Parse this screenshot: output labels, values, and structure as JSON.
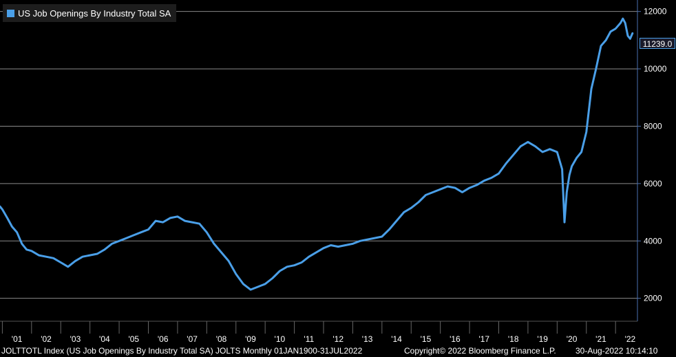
{
  "legend": {
    "label": "US Job Openings By Industry Total SA",
    "color": "#4a9fe8"
  },
  "last_value_label": "11239.0",
  "footer": {
    "left": "JOLTTOTL Index (US Job Openings By Industry Total SA) JOLTS  Monthly 01JAN1900-31JUL2022",
    "middle": "Copyright© 2022 Bloomberg Finance L.P.",
    "right": "30-Aug-2022 10:14:10"
  },
  "chart_data": {
    "type": "line",
    "title": "",
    "xlabel": "",
    "ylabel": "",
    "ylim": [
      1200,
      12400
    ],
    "yticks": [
      2000,
      4000,
      6000,
      8000,
      10000,
      12000
    ],
    "ytick_labels": [
      "2000",
      "4000",
      "6000",
      "8000",
      "10000",
      "12000"
    ],
    "xlim": [
      2000.92,
      2022.75
    ],
    "xticks": [
      2001.5,
      2002.5,
      2003.5,
      2004.5,
      2005.5,
      2006.5,
      2007.5,
      2008.5,
      2009.5,
      2010.5,
      2011.5,
      2012.5,
      2013.5,
      2014.5,
      2015.5,
      2016.5,
      2017.5,
      2018.5,
      2019.5,
      2020.5,
      2021.5,
      2022.5
    ],
    "xtick_labels": [
      "'01",
      "'02",
      "'03",
      "'04",
      "'05",
      "'06",
      "'07",
      "'08",
      "'09",
      "'10",
      "'11",
      "'12",
      "'13",
      "'14",
      "'15",
      "'16",
      "'17",
      "'18",
      "'19",
      "'20",
      "'21",
      "'22"
    ],
    "grid": true,
    "legend_position": "top-left",
    "series": [
      {
        "name": "US Job Openings By Industry Total SA",
        "color": "#4a9fe8",
        "x": [
          2000.92,
          2001.0,
          2001.17,
          2001.33,
          2001.5,
          2001.67,
          2001.83,
          2002.0,
          2002.25,
          2002.5,
          2002.75,
          2003.0,
          2003.25,
          2003.5,
          2003.75,
          2004.0,
          2004.25,
          2004.5,
          2004.75,
          2005.0,
          2005.25,
          2005.5,
          2005.75,
          2006.0,
          2006.25,
          2006.5,
          2006.75,
          2007.0,
          2007.25,
          2007.5,
          2007.75,
          2008.0,
          2008.25,
          2008.5,
          2008.75,
          2009.0,
          2009.25,
          2009.5,
          2009.75,
          2010.0,
          2010.25,
          2010.5,
          2010.75,
          2011.0,
          2011.25,
          2011.5,
          2011.75,
          2012.0,
          2012.25,
          2012.5,
          2012.75,
          2013.0,
          2013.25,
          2013.5,
          2013.75,
          2014.0,
          2014.25,
          2014.5,
          2014.75,
          2015.0,
          2015.25,
          2015.5,
          2015.75,
          2016.0,
          2016.25,
          2016.5,
          2016.75,
          2017.0,
          2017.25,
          2017.5,
          2017.75,
          2018.0,
          2018.25,
          2018.5,
          2018.75,
          2019.0,
          2019.25,
          2019.5,
          2019.75,
          2020.0,
          2020.17,
          2020.25,
          2020.33,
          2020.42,
          2020.5,
          2020.67,
          2020.83,
          2021.0,
          2021.17,
          2021.33,
          2021.5,
          2021.67,
          2021.83,
          2022.0,
          2022.17,
          2022.25,
          2022.33,
          2022.42,
          2022.5,
          2022.58
        ],
        "values": [
          5200,
          5100,
          4800,
          4500,
          4300,
          3900,
          3700,
          3650,
          3500,
          3450,
          3400,
          3250,
          3100,
          3300,
          3450,
          3500,
          3550,
          3700,
          3900,
          4000,
          4100,
          4200,
          4300,
          4400,
          4700,
          4650,
          4800,
          4850,
          4700,
          4650,
          4600,
          4300,
          3900,
          3600,
          3300,
          2850,
          2500,
          2300,
          2400,
          2500,
          2700,
          2950,
          3100,
          3150,
          3250,
          3450,
          3600,
          3750,
          3850,
          3800,
          3850,
          3900,
          4000,
          4050,
          4100,
          4150,
          4400,
          4700,
          5000,
          5150,
          5350,
          5600,
          5700,
          5800,
          5900,
          5850,
          5700,
          5850,
          5950,
          6100,
          6200,
          6350,
          6700,
          7000,
          7300,
          7450,
          7300,
          7100,
          7200,
          7100,
          6500,
          4650,
          5700,
          6300,
          6600,
          6900,
          7100,
          7800,
          9300,
          10000,
          10800,
          11000,
          11300,
          11400,
          11600,
          11750,
          11600,
          11150,
          11050,
          11239
        ]
      }
    ]
  }
}
